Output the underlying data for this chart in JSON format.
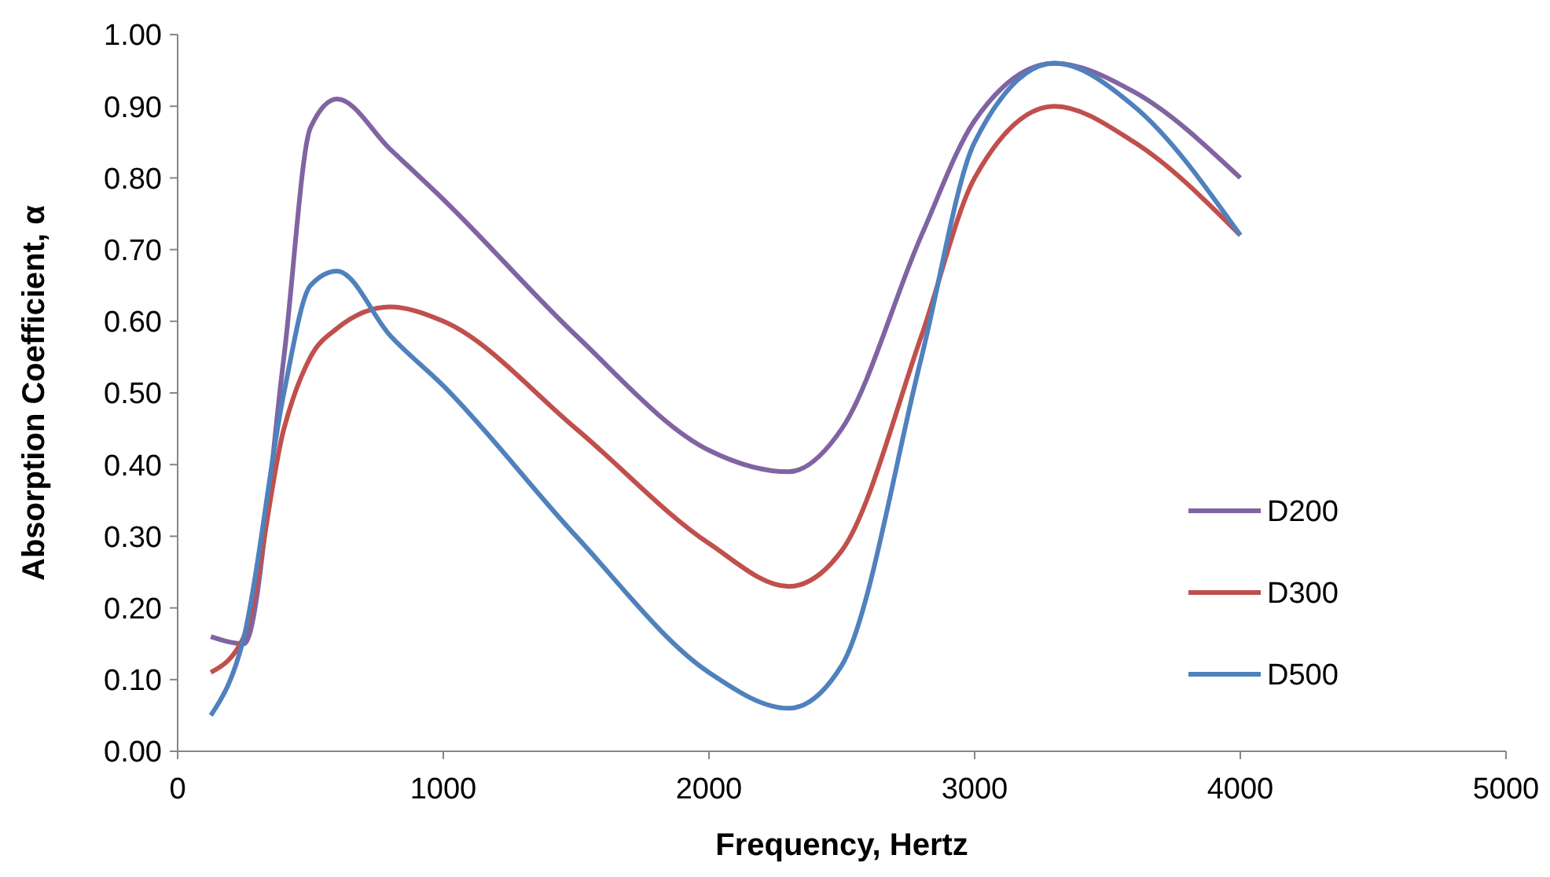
{
  "chart_data": {
    "type": "line",
    "xlabel": "Frequency, Hertz",
    "ylabel": "Absorption Coefficient, α",
    "x": [
      125,
      250,
      400,
      500,
      600,
      800,
      1000,
      1500,
      2000,
      2300,
      2500,
      2800,
      3000,
      3300,
      3600,
      4000
    ],
    "series": [
      {
        "name": "D200",
        "color": "#8064a2",
        "values": [
          0.16,
          0.15,
          0.55,
          0.87,
          0.91,
          0.84,
          0.77,
          0.58,
          0.42,
          0.39,
          0.45,
          0.72,
          0.88,
          0.96,
          0.92,
          0.8
        ]
      },
      {
        "name": "D300",
        "color": "#c0504d",
        "values": [
          0.11,
          0.16,
          0.45,
          0.55,
          0.59,
          0.62,
          0.6,
          0.45,
          0.29,
          0.23,
          0.28,
          0.58,
          0.8,
          0.9,
          0.85,
          0.72
        ]
      },
      {
        "name": "D500",
        "color": "#4f81bd",
        "values": [
          0.05,
          0.16,
          0.5,
          0.65,
          0.67,
          0.58,
          0.51,
          0.3,
          0.11,
          0.06,
          0.12,
          0.55,
          0.85,
          0.96,
          0.9,
          0.72
        ]
      }
    ],
    "xlim": [
      0,
      5000
    ],
    "xticks": [
      0,
      1000,
      2000,
      3000,
      4000,
      5000
    ],
    "ylim": [
      0,
      1
    ],
    "yticks": [
      {
        "value": 0,
        "label": "0.00"
      },
      {
        "value": 0.1,
        "label": "0.10"
      },
      {
        "value": 0.2,
        "label": "0.20"
      },
      {
        "value": 0.3,
        "label": "0.30"
      },
      {
        "value": 0.4,
        "label": "0.40"
      },
      {
        "value": 0.5,
        "label": "0.50"
      },
      {
        "value": 0.6,
        "label": "0.60"
      },
      {
        "value": 0.7,
        "label": "0.70"
      },
      {
        "value": 0.8,
        "label": "0.80"
      },
      {
        "value": 0.9,
        "label": "0.90"
      },
      {
        "value": 1,
        "label": "1.00"
      }
    ],
    "grid": false,
    "legend": "right",
    "marker": "none",
    "line_style": "solid"
  }
}
